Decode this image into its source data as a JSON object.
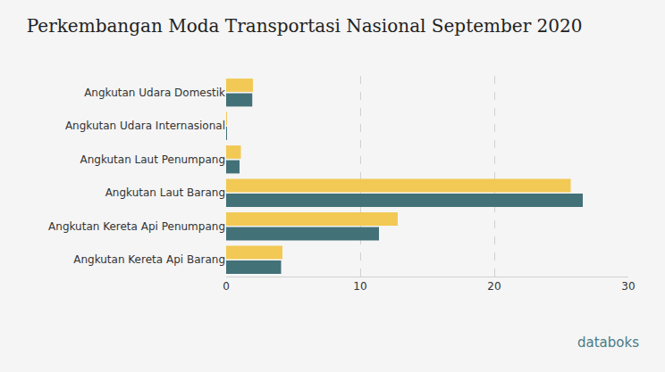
{
  "chart_data": {
    "type": "bar",
    "title": "Perkembangan Moda Transportasi Nasional September 2020",
    "orientation": "horizontal",
    "categories": [
      "Angkutan Udara Domestik",
      "Angkutan Udara Internasional",
      "Angkutan Laut Penumpang",
      "Angkutan Laut Barang",
      "Angkutan Kereta Api Penumpang",
      "Angkutan Kereta Api Barang"
    ],
    "series": [
      {
        "color": "#f2c955",
        "values": [
          2.0,
          0.05,
          1.1,
          25.7,
          12.8,
          4.2
        ]
      },
      {
        "color": "#437178",
        "values": [
          1.95,
          0.05,
          1.0,
          26.6,
          11.4,
          4.1
        ]
      }
    ],
    "xlim": [
      0,
      30
    ],
    "xticks": [
      0,
      10,
      20,
      30
    ],
    "grid": true,
    "annotations": [
      "databoks"
    ]
  }
}
